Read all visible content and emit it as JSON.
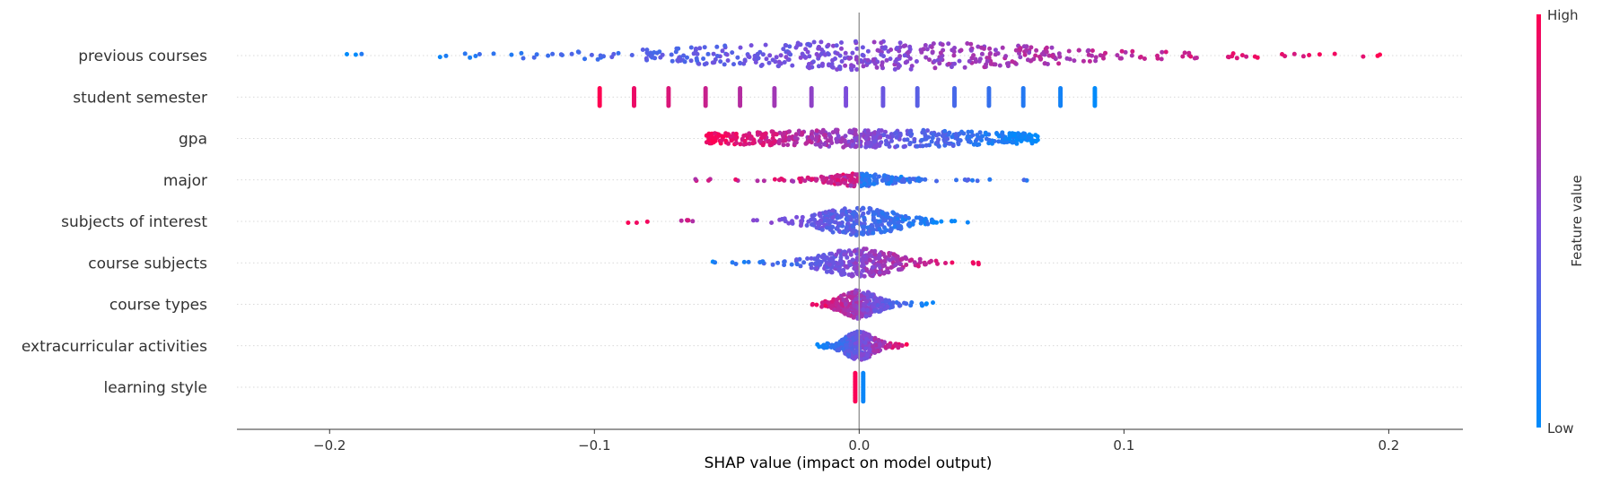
{
  "chart_data": {
    "type": "scatter",
    "subtype": "shap-beeswarm",
    "title": "",
    "xlabel": "SHAP value (impact on model output)",
    "xlim": [
      -0.235,
      0.228
    ],
    "x_ticks": [
      -0.2,
      -0.1,
      0.0,
      0.1,
      0.2
    ],
    "x_tick_labels": [
      "−0.2",
      "−0.1",
      "0.0",
      "0.1",
      "0.2"
    ],
    "zero_line": true,
    "grid": "dotted horizontal row guides",
    "features": [
      {
        "label": "previous courses",
        "min": -0.215,
        "max": 0.205,
        "center": 0.005,
        "spread": 0.06,
        "corr": "positive",
        "style": "continuous",
        "density": 1.0
      },
      {
        "label": "student semester",
        "min": -0.098,
        "max": 0.089,
        "corr": "positive",
        "style": "discrete",
        "values": [
          -0.098,
          -0.085,
          -0.072,
          -0.058,
          -0.045,
          -0.032,
          -0.018,
          -0.005,
          0.009,
          0.022,
          0.036,
          0.049,
          0.062,
          0.076,
          0.089
        ]
      },
      {
        "label": "gpa",
        "min": -0.058,
        "max": 0.068,
        "center": 0.004,
        "spread": 0.04,
        "corr": "negative",
        "style": "band"
      },
      {
        "label": "major",
        "min": -0.069,
        "max": 0.071,
        "center": 0.0,
        "spread": 0.012,
        "corr": "mixed",
        "style": "sparse"
      },
      {
        "label": "subjects of interest",
        "min": -0.095,
        "max": 0.041,
        "center": 0.0,
        "spread": 0.013,
        "corr": "negative",
        "style": "cluster"
      },
      {
        "label": "course subjects",
        "min": -0.059,
        "max": 0.049,
        "center": 0.0,
        "spread": 0.012,
        "corr": "positive",
        "style": "cluster"
      },
      {
        "label": "course types",
        "min": -0.019,
        "max": 0.028,
        "center": 0.0,
        "spread": 0.006,
        "corr": "negative",
        "style": "cluster"
      },
      {
        "label": "extracurricular activities",
        "min": -0.017,
        "max": 0.02,
        "center": 0.0,
        "spread": 0.005,
        "corr": "positive",
        "style": "cluster"
      },
      {
        "label": "learning style",
        "min": -0.002,
        "max": 0.002,
        "center": 0.0,
        "spread": 0.001,
        "corr": "negative",
        "style": "two-value"
      }
    ],
    "colorbar": {
      "label": "Feature value",
      "high_label": "High",
      "low_label": "Low",
      "low_color": "#008bfb",
      "mid_color": "#7c4ddb",
      "high_color": "#ff0052"
    }
  }
}
